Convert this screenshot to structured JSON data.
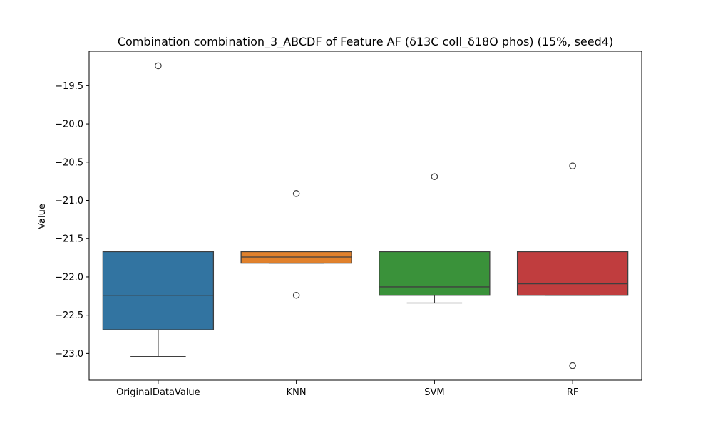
{
  "chart_data": {
    "type": "box",
    "title": "Combination combination_3_ABCDF of Feature AF (δ13C coll_δ18O phos) (15%, seed4)",
    "xlabel": "",
    "ylabel": "Value",
    "ylim": [
      -23.35,
      -19.05
    ],
    "yticks": [
      -23.0,
      -22.5,
      -22.0,
      -21.5,
      -21.0,
      -20.5,
      -20.0,
      -19.5
    ],
    "ytick_labels": [
      "−23.0",
      "−22.5",
      "−22.0",
      "−21.5",
      "−21.0",
      "−20.5",
      "−20.0",
      "−19.5"
    ],
    "grid": false,
    "categories": [
      "OriginalDataValue",
      "KNN",
      "SVM",
      "RF"
    ],
    "boxes": [
      {
        "name": "OriginalDataValue",
        "color": "#3274a1",
        "whisker_low": -23.04,
        "q1": -22.69,
        "median": -22.24,
        "q3": -21.67,
        "whisker_high": -21.67,
        "outliers": [
          -19.24
        ]
      },
      {
        "name": "KNN",
        "color": "#e1812c",
        "whisker_low": -21.82,
        "q1": -21.82,
        "median": -21.74,
        "q3": -21.67,
        "whisker_high": -21.67,
        "outliers": [
          -20.91,
          -22.24
        ]
      },
      {
        "name": "SVM",
        "color": "#3a923a",
        "whisker_low": -22.34,
        "q1": -22.24,
        "median": -22.13,
        "q3": -21.67,
        "whisker_high": -21.67,
        "outliers": [
          -20.69
        ]
      },
      {
        "name": "RF",
        "color": "#c03d3e",
        "whisker_low": -22.24,
        "q1": -22.24,
        "median": -22.09,
        "q3": -21.67,
        "whisker_high": -21.67,
        "outliers": [
          -20.55,
          -23.16
        ]
      }
    ]
  }
}
